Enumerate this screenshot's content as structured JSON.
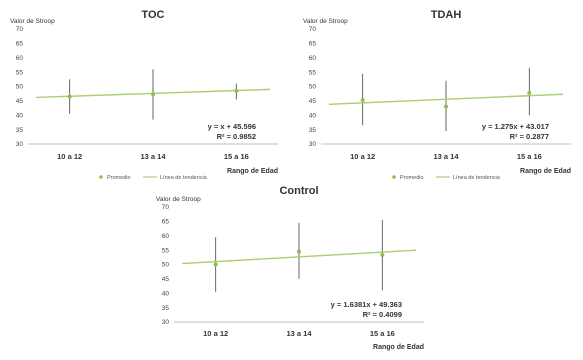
{
  "colors": {
    "marker": "#8fbf4a",
    "trend": "#a9cf74",
    "error_bar": "#555555",
    "axis": "#bfbfbf"
  },
  "chart_data": [
    {
      "type": "scatter",
      "title": "TOC",
      "ylabel": "Valor de Stroop",
      "xlabel": "Rango de Edad",
      "categories": [
        "10 a 12",
        "13 a 14",
        "15 a 16"
      ],
      "ylim": [
        30,
        70
      ],
      "yticks": [
        "30",
        "35",
        "40",
        "45",
        "50",
        "55",
        "60",
        "65",
        "70"
      ],
      "series": [
        {
          "name": "Promedio",
          "values": [
            46.5,
            47.3,
            48.5
          ],
          "error_low": [
            40.5,
            38.5,
            45.5
          ],
          "error_high": [
            52.5,
            56.0,
            51.0
          ]
        },
        {
          "name": "Línea de tendencia",
          "values": [
            46.6,
            47.6,
            48.6
          ]
        }
      ],
      "equation": "y = x + 45.596",
      "r2": "R² = 0.9852",
      "legend": "bottom",
      "show_legend": true
    },
    {
      "type": "scatter",
      "title": "TDAH",
      "ylabel": "Valor de Stroop",
      "xlabel": "Rango de Edad",
      "categories": [
        "10 a 12",
        "13 a 14",
        "15 a 16"
      ],
      "ylim": [
        30,
        70
      ],
      "yticks": [
        "30",
        "35",
        "40",
        "45",
        "50",
        "55",
        "60",
        "65",
        "70"
      ],
      "series": [
        {
          "name": "Promedio",
          "values": [
            45.3,
            43.0,
            47.8
          ],
          "error_low": [
            36.5,
            34.5,
            40.0
          ],
          "error_high": [
            54.5,
            52.0,
            56.5
          ]
        },
        {
          "name": "Línea de tendencia",
          "values": [
            44.3,
            45.6,
            46.8
          ]
        }
      ],
      "equation": "y = 1.275x + 43.017",
      "r2": "R² = 0.2877",
      "legend": "bottom",
      "show_legend": true
    },
    {
      "type": "scatter",
      "title": "Control",
      "ylabel": "Valor de Stroop",
      "xlabel": "Rango de Edad",
      "categories": [
        "10 a 12",
        "13 a 14",
        "15 a 16"
      ],
      "ylim": [
        30,
        70
      ],
      "yticks": [
        "30",
        "35",
        "40",
        "45",
        "50",
        "55",
        "60",
        "65",
        "70"
      ],
      "series": [
        {
          "name": "Promedio",
          "values": [
            50.0,
            54.5,
            53.3
          ],
          "error_low": [
            40.5,
            45.0,
            41.0
          ],
          "error_high": [
            59.5,
            64.5,
            65.5
          ]
        },
        {
          "name": "Línea de tendencia",
          "values": [
            51.0,
            52.6,
            54.3
          ]
        }
      ],
      "equation": "y = 1.6381x + 49.363",
      "r2": "R² = 0.4099",
      "legend": "bottom",
      "show_legend": false
    }
  ]
}
